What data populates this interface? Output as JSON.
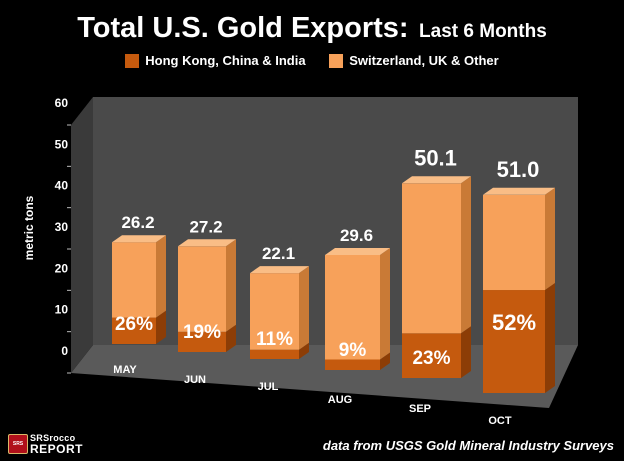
{
  "chart_data": {
    "type": "bar",
    "title": "Total U.S. Gold Exports:",
    "subtitle": "Last 6 Months",
    "ylabel": "metric tons",
    "xlabel": "",
    "ylim": [
      0,
      60
    ],
    "yticks": [
      0,
      10,
      20,
      30,
      40,
      50,
      60
    ],
    "categories": [
      "MAY",
      "JUN",
      "JUL",
      "AUG",
      "SEP",
      "OCT"
    ],
    "totals": [
      26.2,
      27.2,
      22.1,
      29.6,
      50.1,
      51.0
    ],
    "total_labels": [
      "26.2",
      "27.2",
      "22.1",
      "29.6",
      "50.1",
      "51.0"
    ],
    "hk_share_labels": [
      "26%",
      "19%",
      "11%",
      "9%",
      "23%",
      "52%"
    ],
    "series": [
      {
        "name": "Hong Kong, China & India",
        "values": [
          6.8,
          5.2,
          2.4,
          2.7,
          11.5,
          26.5
        ],
        "color": "#c55a0e"
      },
      {
        "name": "Switzerland, UK & Other",
        "values": [
          19.4,
          22.0,
          19.7,
          26.9,
          38.6,
          24.5
        ],
        "color": "#f7a15a"
      }
    ],
    "grid": false,
    "legend_position": "top-center",
    "stacked": true
  },
  "colors": {
    "hk_front": "#c55a0e",
    "hk_side": "#8c3d06",
    "hk_top": "#d9731f",
    "other_front": "#f7a15a",
    "other_side": "#c97a36",
    "other_top": "#f9bd86",
    "wall_back": "#4a4a4a",
    "wall_side": "#3a3a3a",
    "floor": "#5a5a5a",
    "axis_text": "#ffffff"
  },
  "source_note": "data from USGS Gold Mineral Industry Surveys",
  "logo": {
    "icon": "SRS",
    "line1": "SRSrocco",
    "line2": "REPORT"
  }
}
